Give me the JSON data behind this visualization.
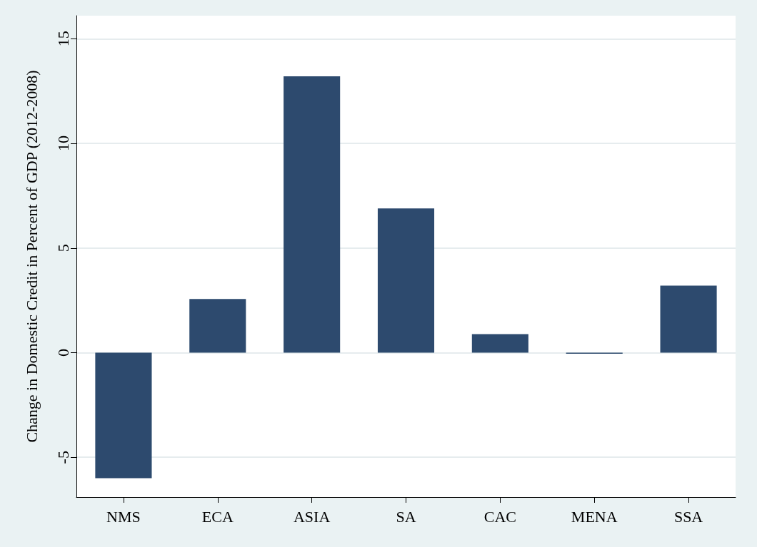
{
  "chart_data": {
    "type": "bar",
    "ylabel": "Change in Domestic Credit in Percent of GDP (2012-2008)",
    "categories": [
      "NMS",
      "ECA",
      "ASIA",
      "SA",
      "CAC",
      "MENA",
      "SSA"
    ],
    "values": [
      -6.0,
      2.56,
      13.2,
      6.89,
      0.89,
      -0.05,
      3.2
    ],
    "color": "#2d4a6e",
    "ylim": [
      -6.9,
      16.1
    ],
    "yticks": [
      -5,
      0,
      5,
      10,
      15
    ],
    "grid": "y"
  }
}
